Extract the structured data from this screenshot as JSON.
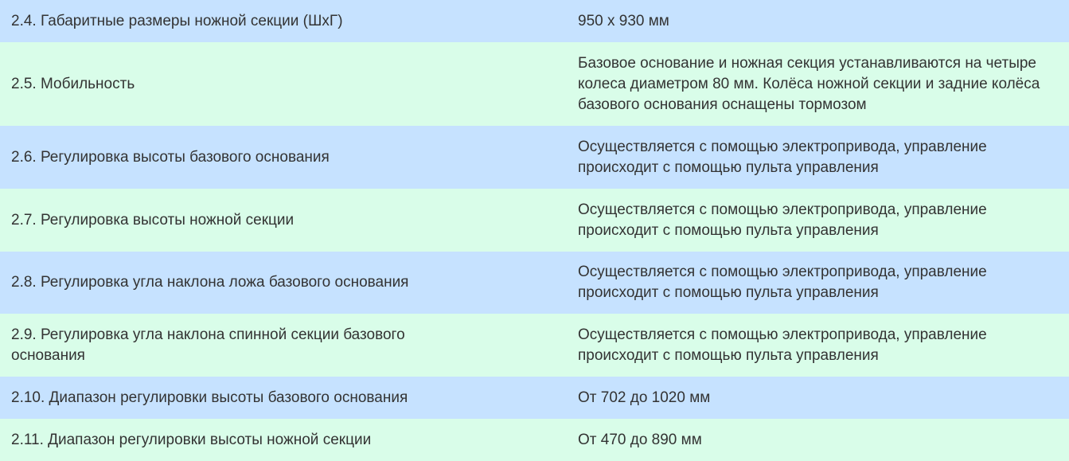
{
  "colors": {
    "row_odd": "#c6e2ff",
    "row_even": "#d9fde9",
    "text": "#333333"
  },
  "rows": [
    {
      "label": "2.4. Габаритные размеры ножной секции (ШхГ)",
      "value": "950 х 930 мм"
    },
    {
      "label": "2.5. Мобильность",
      "value": "Базовое основание и ножная секция устанавливаются на четыре колеса диаметром 80 мм. Колёса ножной секции и задние колёса базового основания оснащены тормозом"
    },
    {
      "label": "2.6. Регулировка высоты базового основания",
      "value": "Осуществляется с помощью электропривода, управление происходит с помощью пульта управления"
    },
    {
      "label": "2.7. Регулировка высоты ножной секции",
      "value": "Осуществляется с помощью электропривода, управление происходит с помощью пульта управления"
    },
    {
      "label": "2.8. Регулировка угла наклона ложа базового основания",
      "value": "Осуществляется с помощью электропривода, управление происходит с помощью пульта управления"
    },
    {
      "label": "2.9. Регулировка угла наклона спинной секции базового основания",
      "value": "Осуществляется с помощью электропривода, управление происходит с помощью пульта управления"
    },
    {
      "label": "2.10. Диапазон регулировки высоты базового основания",
      "value": "От 702 до 1020 мм"
    },
    {
      "label": "2.11. Диапазон регулировки высоты ножной секции",
      "value": "От 470 до 890 мм"
    }
  ]
}
